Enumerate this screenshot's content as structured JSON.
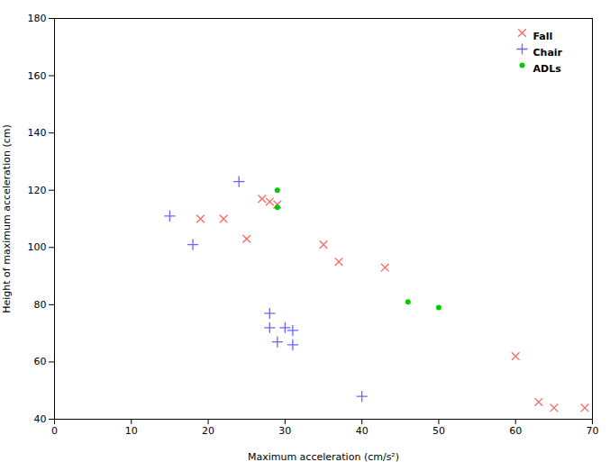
{
  "chart_data": {
    "type": "scatter",
    "xlabel": "Maximum acceleration (cm/s²)",
    "ylabel": "Height of maximum acceleration (cm)",
    "series": [
      {
        "name": "Fall",
        "color": "#FF6666",
        "marker": "x",
        "x": [
          19,
          22,
          25,
          27,
          28,
          29,
          35,
          37,
          43,
          60,
          63,
          65,
          69
        ],
        "values": [
          110,
          110,
          103,
          117,
          116,
          115,
          101,
          95,
          93,
          62,
          46,
          44,
          44
        ]
      },
      {
        "name": "Chair",
        "color": "#6666FF",
        "marker": "plus",
        "x": [
          15,
          18,
          24,
          28,
          28,
          29,
          30,
          31,
          31,
          40
        ],
        "values": [
          111,
          101,
          123,
          77,
          72,
          67,
          72,
          71,
          66,
          48
        ]
      },
      {
        "name": "ADLs",
        "color": "#00CC00",
        "marker": "circle",
        "x": [
          29,
          29,
          46,
          50
        ],
        "values": [
          120,
          114,
          81,
          79
        ]
      }
    ],
    "xlim": [
      0,
      70
    ],
    "ylim": [
      40,
      180
    ],
    "xticks": [
      0,
      10,
      20,
      30,
      40,
      50,
      60,
      70
    ],
    "yticks": [
      40,
      60,
      80,
      100,
      120,
      140,
      160,
      180
    ],
    "grid": false,
    "legend": "upper right"
  }
}
